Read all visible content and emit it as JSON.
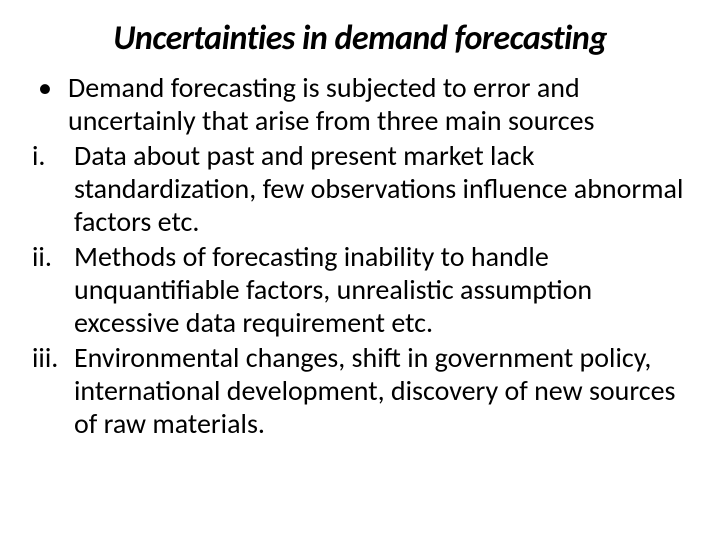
{
  "slide": {
    "title": "Uncertainties in demand forecasting",
    "title_fontsize": 34,
    "title_fontstyle": "italic",
    "title_fontweight": "bold",
    "background_color": "#ffffff",
    "text_color": "#000000",
    "body_fontsize": 28,
    "bullet": {
      "marker": "•",
      "text": "Demand forecasting is subjected to error and uncertainly that arise from three main sources"
    },
    "items": [
      {
        "marker": "i.",
        "text": "Data about past and present market lack standardization, few observations influence abnormal factors etc."
      },
      {
        "marker": "ii.",
        "text": "Methods of forecasting inability to handle unquantifiable factors, unrealistic assumption excessive data requirement etc."
      },
      {
        "marker": "iii.",
        "text": "Environmental changes, shift in government policy, international development, discovery of new sources of raw materials."
      }
    ]
  }
}
